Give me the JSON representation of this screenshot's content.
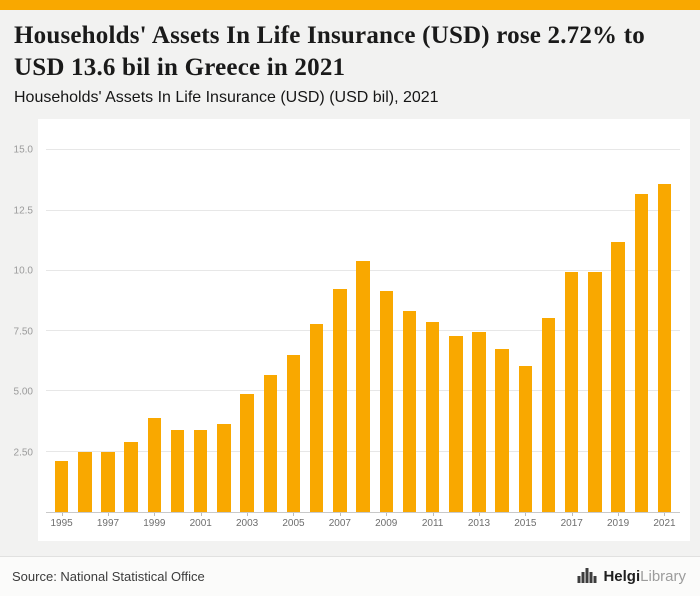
{
  "accent_color": "#F9A800",
  "header": {
    "title": "Households' Assets In Life Insurance (USD) rose 2.72% to USD 13.6 bil in Greece in 2021",
    "subtitle": "Households' Assets In Life Insurance (USD) (USD bil), 2021"
  },
  "chart_data": {
    "type": "bar",
    "title": "Households' Assets In Life Insurance (USD) (USD bil), 2021",
    "xlabel": "",
    "ylabel": "",
    "bar_color": "#F9A800",
    "grid": true,
    "ylim": [
      0,
      15.8
    ],
    "yticks": [
      {
        "value": 2.5,
        "label": "2.50"
      },
      {
        "value": 5.0,
        "label": "5.00"
      },
      {
        "value": 7.5,
        "label": "7.50"
      },
      {
        "value": 10.0,
        "label": "10.0"
      },
      {
        "value": 12.5,
        "label": "12.5"
      },
      {
        "value": 15.0,
        "label": "15.0"
      }
    ],
    "xtick_labels": [
      "1995",
      "1997",
      "1999",
      "2001",
      "2003",
      "2005",
      "2007",
      "2009",
      "2011",
      "2013",
      "2015",
      "2017",
      "2019",
      "2021"
    ],
    "categories": [
      1995,
      1996,
      1997,
      1998,
      1999,
      2000,
      2001,
      2002,
      2003,
      2004,
      2005,
      2006,
      2007,
      2008,
      2009,
      2010,
      2011,
      2012,
      2013,
      2014,
      2015,
      2016,
      2017,
      2018,
      2019,
      2020,
      2021
    ],
    "values": [
      2.1,
      2.5,
      2.5,
      2.9,
      3.9,
      3.4,
      3.4,
      3.65,
      4.9,
      5.7,
      6.5,
      7.8,
      9.25,
      10.4,
      9.15,
      8.35,
      7.9,
      7.3,
      7.45,
      6.75,
      6.05,
      8.05,
      9.95,
      9.95,
      11.2,
      13.2,
      13.6
    ]
  },
  "footer": {
    "source": "Source: National Statistical Office",
    "logo_bold": "Helgi",
    "logo_light": "Library"
  }
}
